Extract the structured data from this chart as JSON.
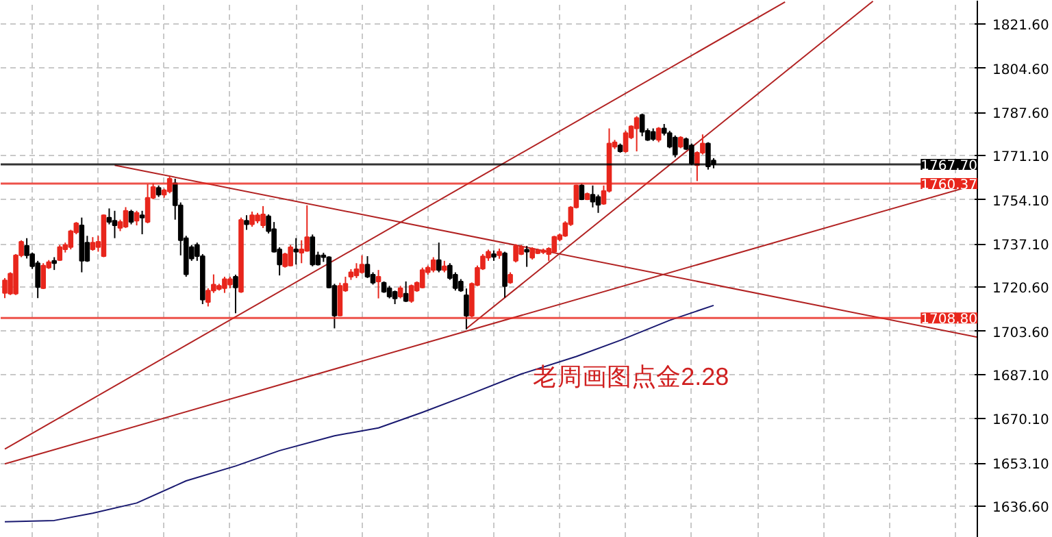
{
  "chart_data": {
    "type": "candlestick",
    "categories": [
      null,
      null,
      null,
      null,
      null,
      null,
      null,
      null,
      null,
      null,
      null,
      null,
      null,
      null,
      null,
      null,
      null,
      null,
      null,
      null,
      null,
      null,
      null,
      null,
      null,
      null,
      null,
      null,
      null,
      null,
      null,
      null,
      null,
      null,
      null,
      null,
      null,
      null,
      null,
      null,
      null,
      null,
      null,
      null,
      null,
      null,
      null,
      null,
      null,
      null,
      null,
      null,
      null,
      null,
      null,
      null,
      null,
      null,
      null,
      null,
      null,
      null,
      null,
      null,
      null,
      null,
      null,
      null,
      null,
      null,
      null,
      null,
      null,
      null,
      null,
      null,
      null,
      null,
      null,
      null,
      null,
      null,
      null,
      null,
      null,
      null,
      null,
      null,
      null,
      null,
      null,
      null,
      null,
      null,
      null,
      null,
      null,
      null,
      null,
      null,
      null,
      null,
      null,
      null,
      null,
      null,
      null,
      null,
      null,
      null,
      null,
      null,
      null,
      null,
      null,
      null,
      null,
      null,
      null,
      null,
      null,
      null,
      null,
      null,
      null,
      null,
      null,
      null,
      null,
      null,
      null,
      null,
      null,
      null,
      null,
      null,
      null,
      null,
      null,
      null,
      null,
      null,
      null,
      null,
      null,
      null,
      null,
      null,
      null,
      null,
      null,
      null,
      null,
      null,
      null,
      null,
      null,
      null,
      null,
      null,
      null,
      null,
      null,
      null,
      null,
      null,
      null,
      null,
      null,
      null,
      null,
      null,
      null,
      null,
      null,
      null,
      null,
      null
    ],
    "ohlc": [
      [
        1718.4,
        1724.1,
        1716.4,
        1723.2
      ],
      [
        1718.1,
        1726.3,
        1717.6,
        1725.8
      ],
      [
        1718.1,
        1733.3,
        1717.6,
        1732.8
      ],
      [
        1732.8,
        1738.6,
        1732.1,
        1738.0
      ],
      [
        1736.5,
        1739.4,
        1731.6,
        1732.8
      ],
      [
        1733.3,
        1733.9,
        1727.6,
        1728.6
      ],
      [
        1729.8,
        1730.7,
        1716.4,
        1720.6
      ],
      [
        1720.2,
        1729.8,
        1719.9,
        1728.9
      ],
      [
        1728.1,
        1731.0,
        1727.6,
        1730.2
      ],
      [
        1730.7,
        1732.1,
        1727.2,
        1729.8
      ],
      [
        1731.0,
        1736.8,
        1730.7,
        1736.0
      ],
      [
        1735.1,
        1737.7,
        1733.9,
        1736.8
      ],
      [
        1736.0,
        1742.6,
        1735.1,
        1742.1
      ],
      [
        1741.6,
        1745.6,
        1740.9,
        1745.1
      ],
      [
        1744.3,
        1747.3,
        1726.3,
        1730.7
      ],
      [
        1737.7,
        1740.3,
        1730.3,
        1730.7
      ],
      [
        1735.1,
        1739.8,
        1734.6,
        1737.7
      ],
      [
        1736.0,
        1740.3,
        1734.2,
        1738.0
      ],
      [
        1732.5,
        1748.5,
        1732.1,
        1748.2
      ],
      [
        1747.3,
        1750.8,
        1744.7,
        1745.6
      ],
      [
        1746.1,
        1749.9,
        1739.4,
        1744.3
      ],
      [
        1743.3,
        1746.5,
        1742.1,
        1745.6
      ],
      [
        1743.8,
        1751.3,
        1743.3,
        1749.9
      ],
      [
        1749.6,
        1750.3,
        1744.7,
        1745.6
      ],
      [
        1746.1,
        1749.9,
        1744.3,
        1749.1
      ],
      [
        1748.2,
        1749.9,
        1740.9,
        1747.3
      ],
      [
        1745.6,
        1760.1,
        1745.1,
        1754.9
      ],
      [
        1754.9,
        1760.4,
        1754.3,
        1759.0
      ],
      [
        1758.7,
        1759.6,
        1755.2,
        1756.1
      ],
      [
        1756.1,
        1758.4,
        1754.9,
        1757.8
      ],
      [
        1757.3,
        1763.1,
        1756.6,
        1762.2
      ],
      [
        1760.5,
        1762.2,
        1746.5,
        1752.0
      ],
      [
        1752.0,
        1753.1,
        1732.8,
        1738.6
      ],
      [
        1739.4,
        1740.3,
        1724.6,
        1725.5
      ],
      [
        1736.0,
        1736.8,
        1730.7,
        1731.6
      ],
      [
        1736.8,
        1737.7,
        1730.7,
        1732.5
      ],
      [
        1732.5,
        1733.3,
        1714.1,
        1715.8
      ],
      [
        1714.9,
        1720.2,
        1713.2,
        1719.3
      ],
      [
        1719.3,
        1725.5,
        1718.4,
        1721.6
      ],
      [
        1719.9,
        1721.9,
        1719.3,
        1721.1
      ],
      [
        1720.2,
        1724.6,
        1718.4,
        1723.7
      ],
      [
        1721.6,
        1724.6,
        1720.2,
        1723.7
      ],
      [
        1724.6,
        1725.4,
        1710.6,
        1720.5
      ],
      [
        1718.8,
        1747.3,
        1718.4,
        1746.4
      ],
      [
        1746.1,
        1748.2,
        1742.6,
        1744.7
      ],
      [
        1744.7,
        1749.6,
        1743.8,
        1748.2
      ],
      [
        1746.1,
        1749.1,
        1745.1,
        1748.2
      ],
      [
        1744.3,
        1751.7,
        1743.3,
        1748.5
      ],
      [
        1747.8,
        1748.5,
        1741.2,
        1742.1
      ],
      [
        1742.9,
        1745.6,
        1733.9,
        1734.2
      ],
      [
        1735.1,
        1735.9,
        1725.1,
        1729.3
      ],
      [
        1728.6,
        1733.8,
        1728.1,
        1733.3
      ],
      [
        1728.9,
        1736.8,
        1728.6,
        1735.9
      ],
      [
        1735.1,
        1739.4,
        1729.3,
        1734.2
      ],
      [
        1733.8,
        1738.6,
        1729.8,
        1735.1
      ],
      [
        1734.5,
        1752.0,
        1734.2,
        1739.8
      ],
      [
        1739.8,
        1740.8,
        1728.6,
        1729.3
      ],
      [
        1732.8,
        1734.2,
        1728.9,
        1729.3
      ],
      [
        1732.8,
        1733.8,
        1730.3,
        1732.1
      ],
      [
        1732.1,
        1732.5,
        1720.2,
        1720.5
      ],
      [
        1721.1,
        1721.9,
        1704.8,
        1709.7
      ],
      [
        1709.7,
        1722.3,
        1709.4,
        1721.1
      ],
      [
        1719.3,
        1724.6,
        1718.8,
        1721.9
      ],
      [
        1724.6,
        1727.5,
        1723.4,
        1726.3
      ],
      [
        1725.1,
        1729.8,
        1724.1,
        1727.5
      ],
      [
        1726.3,
        1732.8,
        1725.8,
        1729.3
      ],
      [
        1729.3,
        1732.5,
        1724.1,
        1724.6
      ],
      [
        1725.4,
        1726.3,
        1721.6,
        1722.3
      ],
      [
        1722.8,
        1727.2,
        1716.3,
        1724.6
      ],
      [
        1722.3,
        1722.8,
        1718.4,
        1718.8
      ],
      [
        1720.2,
        1721.1,
        1716.3,
        1717.0
      ],
      [
        1718.8,
        1719.3,
        1714.1,
        1716.3
      ],
      [
        1717.0,
        1721.1,
        1716.3,
        1720.2
      ],
      [
        1718.1,
        1722.8,
        1714.9,
        1715.3
      ],
      [
        1715.3,
        1721.6,
        1714.6,
        1721.1
      ],
      [
        1719.3,
        1722.8,
        1718.8,
        1722.3
      ],
      [
        1720.5,
        1728.1,
        1720.2,
        1727.2
      ],
      [
        1726.3,
        1728.9,
        1725.4,
        1728.1
      ],
      [
        1727.2,
        1732.1,
        1726.3,
        1731.0
      ],
      [
        1731.0,
        1737.7,
        1726.3,
        1727.2
      ],
      [
        1727.2,
        1730.7,
        1726.3,
        1728.6
      ],
      [
        1728.9,
        1729.8,
        1723.4,
        1724.1
      ],
      [
        1725.4,
        1726.3,
        1719.3,
        1720.2
      ],
      [
        1722.8,
        1723.7,
        1718.8,
        1719.3
      ],
      [
        1717.5,
        1720.1,
        1704.4,
        1709.6
      ],
      [
        1709.6,
        1722.4,
        1709.1,
        1721.9
      ],
      [
        1721.4,
        1728.9,
        1721.0,
        1728.0
      ],
      [
        1727.7,
        1733.3,
        1727.2,
        1732.4
      ],
      [
        1731.9,
        1735.0,
        1730.7,
        1734.2
      ],
      [
        1733.3,
        1734.7,
        1730.7,
        1732.2
      ],
      [
        1732.8,
        1735.4,
        1731.5,
        1734.2
      ],
      [
        1733.6,
        1734.2,
        1716.6,
        1721.0
      ],
      [
        1722.4,
        1726.3,
        1721.9,
        1725.4
      ],
      [
        1730.7,
        1737.1,
        1730.1,
        1736.4
      ],
      [
        1733.3,
        1736.8,
        1732.9,
        1735.9
      ],
      [
        1735.0,
        1736.4,
        1728.4,
        1734.2
      ],
      [
        1731.9,
        1735.9,
        1731.2,
        1735.4
      ],
      [
        1733.6,
        1735.4,
        1733.3,
        1734.7
      ],
      [
        1734.0,
        1735.4,
        1733.3,
        1734.7
      ],
      [
        1733.3,
        1735.9,
        1730.7,
        1735.4
      ],
      [
        1734.2,
        1740.3,
        1733.6,
        1739.9
      ],
      [
        1738.9,
        1741.2,
        1738.2,
        1740.6
      ],
      [
        1740.3,
        1745.9,
        1739.9,
        1745.2
      ],
      [
        1744.7,
        1751.7,
        1744.1,
        1751.2
      ],
      [
        1751.2,
        1759.9,
        1750.8,
        1759.6
      ],
      [
        1759.6,
        1760.4,
        1754.0,
        1754.3
      ],
      [
        1754.3,
        1756.9,
        1754.0,
        1756.4
      ],
      [
        1756.1,
        1759.6,
        1751.2,
        1753.4
      ],
      [
        1755.2,
        1756.1,
        1749.1,
        1752.2
      ],
      [
        1752.6,
        1759.6,
        1752.2,
        1757.5
      ],
      [
        1757.5,
        1781.5,
        1756.9,
        1775.7
      ],
      [
        1774.5,
        1777.1,
        1773.6,
        1776.2
      ],
      [
        1775.0,
        1775.7,
        1772.2,
        1772.7
      ],
      [
        1772.7,
        1780.6,
        1772.2,
        1779.7
      ],
      [
        1778.0,
        1782.7,
        1777.4,
        1782.3
      ],
      [
        1781.5,
        1786.2,
        1772.7,
        1785.5
      ],
      [
        1786.7,
        1787.2,
        1778.5,
        1780.2
      ],
      [
        1780.6,
        1781.5,
        1776.7,
        1777.1
      ],
      [
        1780.2,
        1781.5,
        1776.7,
        1777.4
      ],
      [
        1777.1,
        1782.0,
        1776.2,
        1781.5
      ],
      [
        1781.5,
        1783.2,
        1778.8,
        1779.7
      ],
      [
        1779.7,
        1780.6,
        1773.9,
        1774.5
      ],
      [
        1778.0,
        1778.8,
        1770.4,
        1771.5
      ],
      [
        1774.5,
        1778.5,
        1773.9,
        1778.0
      ],
      [
        1777.4,
        1778.0,
        1773.2,
        1773.6
      ],
      [
        1775.0,
        1775.7,
        1767.4,
        1768.0
      ],
      [
        1767.4,
        1772.7,
        1761.3,
        1772.2
      ],
      [
        1772.2,
        1779.2,
        1771.5,
        1775.7
      ],
      [
        1775.7,
        1776.2,
        1765.7,
        1766.9
      ],
      [
        1769.2,
        1770.1,
        1766.2,
        1767.7
      ],
      null,
      null,
      null,
      null,
      null,
      null,
      null,
      null,
      null,
      null,
      null,
      null,
      null,
      null,
      null,
      null,
      null,
      null,
      null,
      null,
      null,
      null,
      null,
      null,
      null,
      null,
      null,
      null,
      null,
      null,
      null,
      null,
      null,
      null,
      null,
      null,
      null,
      null,
      null,
      null,
      null,
      null,
      null,
      null,
      null,
      null,
      null,
      null
    ],
    "colors": [
      "#e8261c",
      "#e8261c",
      "#e8261c",
      "#e8261c",
      "#000000",
      "#000000",
      "#000000",
      "#e8261c",
      "#e8261c",
      "#000000",
      "#e8261c",
      "#e8261c",
      "#e8261c",
      "#e8261c",
      "#000000",
      "#000000",
      "#e8261c",
      "#e8261c",
      "#e8261c",
      "#000000",
      "#000000",
      "#e8261c",
      "#e8261c",
      "#000000",
      "#e8261c",
      "#000000",
      "#e8261c",
      "#e8261c",
      "#000000",
      "#e8261c",
      "#e8261c",
      "#000000",
      "#000000",
      "#000000",
      "#000000",
      "#000000",
      "#000000",
      "#e8261c",
      "#e8261c",
      "#e8261c",
      "#e8261c",
      "#e8261c",
      "#000000",
      "#e8261c",
      "#000000",
      "#e8261c",
      "#e8261c",
      "#e8261c",
      "#000000",
      "#000000",
      "#000000",
      "#e8261c",
      "#e8261c",
      "#000000",
      "#e8261c",
      "#e8261c",
      "#000000",
      "#000000",
      "#000000",
      "#000000",
      "#000000",
      "#e8261c",
      "#e8261c",
      "#e8261c",
      "#e8261c",
      "#e8261c",
      "#000000",
      "#000000",
      "#e8261c",
      "#000000",
      "#000000",
      "#000000",
      "#e8261c",
      "#000000",
      "#e8261c",
      "#e8261c",
      "#e8261c",
      "#e8261c",
      "#e8261c",
      "#000000",
      "#e8261c",
      "#000000",
      "#000000",
      "#000000",
      "#000000",
      "#e8261c",
      "#e8261c",
      "#e8261c",
      "#e8261c",
      "#000000",
      "#e8261c",
      "#000000",
      "#e8261c",
      "#e8261c",
      "#e8261c",
      "#000000",
      "#e8261c",
      "#e8261c",
      "#e8261c",
      "#e8261c",
      "#e8261c",
      "#e8261c",
      "#e8261c",
      "#e8261c",
      "#e8261c",
      "#000000",
      "#e8261c",
      "#000000",
      "#000000",
      "#e8261c",
      "#e8261c",
      "#e8261c",
      "#000000",
      "#e8261c",
      "#e8261c",
      "#e8261c",
      "#000000",
      "#000000",
      "#000000",
      "#e8261c",
      "#000000",
      "#000000",
      "#000000",
      "#e8261c",
      "#000000",
      "#000000",
      "#e8261c",
      "#e8261c",
      "#000000",
      "#000000",
      null,
      null,
      null,
      null,
      null,
      null,
      null,
      null,
      null,
      null,
      null,
      null,
      null,
      null,
      null,
      null,
      null,
      null,
      null,
      null,
      null,
      null,
      null,
      null,
      null,
      null,
      null,
      null,
      null,
      null,
      null,
      null,
      null,
      null,
      null,
      null,
      null,
      null,
      null,
      null,
      null,
      null,
      null,
      null,
      null,
      null,
      null,
      null
    ],
    "series": [
      {
        "type": "line",
        "color": "#191970",
        "values": [
          1630.6,
          null,
          null,
          null,
          null,
          null,
          null,
          null,
          null,
          1631.1,
          null,
          null,
          null,
          null,
          null,
          null,
          1633.9,
          null,
          null,
          null,
          null,
          null,
          null,
          null,
          1637.8,
          null,
          null,
          null,
          null,
          null,
          null,
          null,
          null,
          1646.3,
          null,
          null,
          null,
          null,
          null,
          null,
          null,
          null,
          1652.0,
          null,
          null,
          null,
          null,
          null,
          null,
          null,
          1657.9,
          null,
          null,
          null,
          null,
          null,
          null,
          null,
          null,
          null,
          1663.6,
          null,
          null,
          null,
          null,
          null,
          null,
          null,
          1666.6,
          null,
          null,
          null,
          null,
          null,
          null,
          null,
          1672.6,
          null,
          null,
          null,
          null,
          null,
          null,
          null,
          1679.0,
          null,
          null,
          null,
          null,
          null,
          null,
          null,
          null,
          null,
          1687.3,
          null,
          null,
          null,
          null,
          null,
          null,
          null,
          null,
          null,
          1694.0,
          null,
          null,
          null,
          null,
          null,
          null,
          null,
          1700.2,
          null,
          null,
          null,
          null,
          null,
          null,
          null,
          null,
          1707.9,
          null,
          null,
          null,
          null,
          null,
          null,
          null,
          1713.6,
          null,
          null,
          null,
          null,
          null,
          null,
          null,
          null,
          null,
          null,
          null,
          null,
          null,
          null,
          null,
          null,
          null,
          null,
          null,
          null,
          null,
          null,
          null,
          null,
          null,
          null,
          null,
          null,
          null,
          null,
          null,
          null,
          null,
          null,
          null,
          null,
          null,
          null,
          null,
          null,
          null,
          null,
          null,
          null,
          null,
          null,
          null,
          null
        ]
      },
      {
        "type": "line",
        "color": "#b22222",
        "values": [
          null,
          null,
          null,
          null,
          null,
          null,
          null,
          null,
          null,
          null,
          null,
          null,
          null,
          null,
          null,
          null,
          null,
          null,
          null,
          null,
          1767.4,
          null,
          null,
          null,
          null,
          null,
          null,
          null,
          null,
          null,
          null,
          null,
          null,
          null,
          null,
          null,
          null,
          null,
          null,
          null,
          null,
          null,
          null,
          null,
          null,
          null,
          null,
          null,
          null,
          null,
          null,
          null,
          null,
          null,
          null,
          null,
          null,
          null,
          null,
          null,
          null,
          null,
          null,
          null,
          null,
          null,
          null,
          null,
          null,
          null,
          null,
          null,
          null,
          null,
          null,
          null,
          null,
          null,
          null,
          null,
          null,
          null,
          null,
          null,
          null,
          null,
          null,
          null,
          null,
          null,
          null,
          null,
          null,
          null,
          null,
          null,
          null,
          null,
          null,
          null,
          null,
          null,
          null,
          null,
          null,
          null,
          null,
          null,
          null,
          null,
          null,
          null,
          null,
          null,
          null,
          null,
          null,
          null,
          null,
          null,
          null,
          null,
          null,
          null,
          null,
          null,
          null,
          null,
          null,
          null,
          null,
          null,
          null,
          null,
          null,
          null,
          null,
          null,
          null,
          null,
          null,
          null,
          null,
          null,
          null,
          null,
          null,
          null,
          null,
          null,
          null,
          null,
          null,
          null,
          null,
          null,
          null,
          null,
          null,
          null,
          null,
          null,
          null,
          null,
          null,
          null,
          null,
          null,
          null,
          null,
          null,
          null,
          null,
          null,
          null,
          null,
          null,
          1701.4
        ]
      },
      {
        "type": "line",
        "color": "#b22222",
        "values": [
          1658.5,
          null,
          null,
          null,
          null,
          null,
          null,
          null,
          null,
          null,
          null,
          null,
          null,
          null,
          null,
          null,
          null,
          null,
          null,
          null,
          null,
          null,
          null,
          null,
          null,
          null,
          null,
          null,
          null,
          null,
          null,
          null,
          null,
          null,
          null,
          null,
          null,
          null,
          null,
          null,
          null,
          null,
          null,
          null,
          null,
          null,
          null,
          null,
          null,
          null,
          null,
          null,
          null,
          null,
          null,
          null,
          null,
          null,
          null,
          null,
          null,
          null,
          null,
          null,
          null,
          null,
          null,
          null,
          null,
          null,
          null,
          null,
          null,
          null,
          null,
          null,
          null,
          null,
          null,
          null,
          null,
          null,
          null,
          null,
          null,
          null,
          null,
          null,
          null,
          null,
          null,
          null,
          null,
          null,
          null,
          null,
          null,
          null,
          null,
          null,
          null,
          null,
          null,
          null,
          null,
          null,
          null,
          null,
          null,
          null,
          null,
          null,
          null,
          null,
          null,
          null,
          null,
          null,
          null,
          null,
          null,
          null,
          null,
          null,
          null,
          null,
          null,
          null,
          null,
          null,
          null,
          null,
          null,
          null,
          null,
          null,
          null,
          null,
          null,
          null,
          null,
          null,
          1830.0,
          null,
          null,
          null,
          null,
          null,
          null,
          null,
          null,
          null,
          null,
          null,
          null,
          null,
          null,
          null,
          null,
          null,
          null,
          null,
          null,
          null,
          null,
          null,
          null,
          null,
          null,
          null,
          null,
          null,
          null,
          null,
          null,
          null,
          null,
          null
        ]
      },
      {
        "type": "line",
        "color": "#b22222",
        "values": [
          null,
          null,
          null,
          null,
          null,
          null,
          null,
          null,
          null,
          null,
          null,
          null,
          null,
          null,
          null,
          null,
          null,
          null,
          null,
          null,
          null,
          null,
          null,
          null,
          null,
          null,
          null,
          null,
          null,
          null,
          null,
          null,
          null,
          null,
          null,
          null,
          null,
          null,
          null,
          null,
          null,
          null,
          null,
          null,
          null,
          null,
          null,
          null,
          null,
          null,
          null,
          null,
          null,
          null,
          null,
          null,
          null,
          null,
          null,
          null,
          null,
          null,
          null,
          null,
          null,
          null,
          null,
          null,
          null,
          null,
          null,
          null,
          null,
          null,
          null,
          null,
          null,
          null,
          null,
          null,
          null,
          null,
          null,
          null,
          1704.7,
          null,
          null,
          null,
          null,
          null,
          null,
          null,
          null,
          null,
          null,
          null,
          null,
          null,
          null,
          null,
          null,
          null,
          null,
          null,
          null,
          null,
          null,
          null,
          null,
          null,
          null,
          null,
          null,
          null,
          null,
          null,
          null,
          null,
          null,
          null,
          null,
          null,
          null,
          null,
          null,
          null,
          null,
          null,
          null,
          null,
          null,
          null,
          null,
          null,
          null,
          null,
          null,
          null,
          null,
          null,
          null,
          null,
          null,
          null,
          null,
          null,
          null,
          null,
          null,
          null,
          null,
          null,
          null,
          null,
          null,
          null,
          null,
          null,
          1830.3,
          null,
          null,
          null,
          null,
          null,
          null,
          null,
          null,
          null,
          null,
          null,
          null,
          null,
          null,
          null,
          null,
          null,
          null,
          null
        ]
      },
      {
        "type": "line",
        "color": "#b22222",
        "values": [
          1652.8,
          null,
          null,
          null,
          null,
          null,
          null,
          null,
          null,
          null,
          null,
          null,
          null,
          null,
          null,
          null,
          null,
          null,
          null,
          null,
          null,
          null,
          null,
          null,
          null,
          null,
          null,
          null,
          null,
          null,
          null,
          null,
          null,
          null,
          null,
          null,
          null,
          null,
          null,
          null,
          null,
          null,
          null,
          null,
          null,
          null,
          null,
          null,
          null,
          null,
          null,
          null,
          null,
          null,
          null,
          null,
          null,
          null,
          null,
          null,
          null,
          null,
          null,
          null,
          null,
          null,
          null,
          null,
          null,
          null,
          null,
          null,
          null,
          null,
          null,
          null,
          null,
          null,
          null,
          null,
          null,
          null,
          null,
          null,
          null,
          null,
          null,
          null,
          null,
          null,
          null,
          null,
          null,
          null,
          null,
          null,
          null,
          null,
          null,
          null,
          null,
          null,
          null,
          null,
          null,
          null,
          null,
          null,
          null,
          null,
          null,
          null,
          null,
          null,
          null,
          null,
          null,
          null,
          null,
          null,
          null,
          null,
          null,
          null,
          null,
          null,
          null,
          null,
          null,
          null,
          null,
          null,
          null,
          null,
          null,
          null,
          null,
          null,
          null,
          null,
          null,
          null,
          null,
          null,
          null,
          null,
          null,
          null,
          null,
          null,
          null,
          null,
          null,
          null,
          null,
          null,
          null,
          null,
          null,
          null,
          null,
          null,
          null,
          null,
          null,
          null,
          null,
          null,
          null,
          null,
          null,
          null,
          null,
          null,
          null,
          null,
          null,
          1760.1
        ]
      }
    ],
    "ylim": [
      1624.5,
      1830.5
    ],
    "yticks": [
      {
        "value": 1636.6,
        "label": "1636.60"
      },
      {
        "value": 1653.1,
        "label": "1653.10"
      },
      {
        "value": 1670.1,
        "label": "1670.10"
      },
      {
        "value": 1687.1,
        "label": "1687.10"
      },
      {
        "value": 1703.6,
        "label": "1703.60"
      },
      {
        "value": 1720.6,
        "label": "1720.60"
      },
      {
        "value": 1737.1,
        "label": "1737.10"
      },
      {
        "value": 1754.1,
        "label": "1754.10"
      },
      {
        "value": 1771.1,
        "label": "1771.10"
      },
      {
        "value": 1787.6,
        "label": "1787.60"
      },
      {
        "value": 1804.6,
        "label": "1804.60"
      },
      {
        "value": 1821.6,
        "label": "1821.60"
      }
    ],
    "ref_lines": [
      {
        "axis": "y",
        "value": 1767.7,
        "label": "1767.70",
        "color": "#000000"
      },
      {
        "axis": "y",
        "value": 1760.37,
        "label": "1760.37",
        "color": "#e8261c"
      },
      {
        "axis": "y",
        "value": 1708.8,
        "label": "1708.80",
        "color": "#e8261c"
      }
    ],
    "annotations": [
      "老周画图点金2.28"
    ],
    "grid": true,
    "tick_labels": "y"
  }
}
